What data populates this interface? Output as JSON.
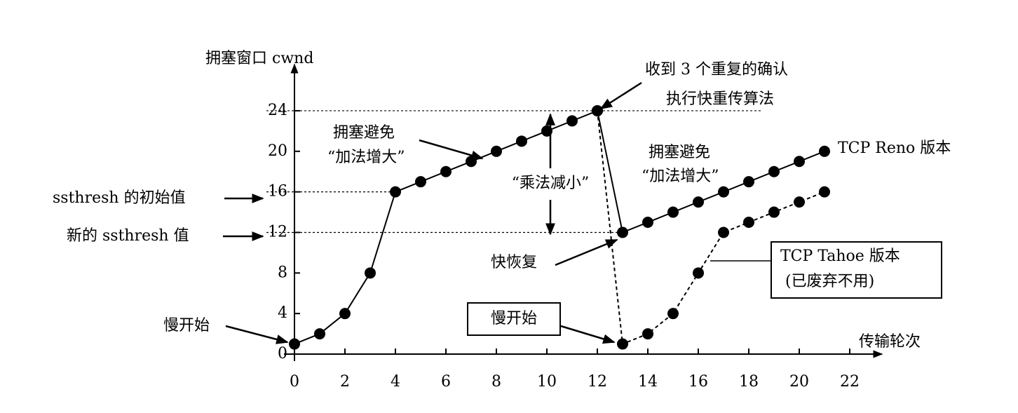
{
  "chart_data": {
    "type": "line",
    "y_label": "拥塞窗口 cwnd",
    "x_label": "传输轮次",
    "xlim": [
      0,
      23
    ],
    "xticks": [
      0,
      2,
      4,
      6,
      8,
      10,
      12,
      14,
      16,
      18,
      20,
      22
    ],
    "ylim": [
      0,
      28
    ],
    "yticks": [
      0,
      4,
      8,
      12,
      16,
      20,
      24
    ],
    "grid": false,
    "series": [
      {
        "name": "TCP Reno 版本",
        "color": "#000000",
        "dashed": false,
        "x": [
          0,
          1,
          2,
          3,
          4,
          5,
          6,
          7,
          8,
          9,
          10,
          11,
          12,
          13,
          14,
          15,
          16,
          17,
          18,
          19,
          20,
          21
        ],
        "values": [
          1,
          2,
          4,
          8,
          16,
          17,
          18,
          19,
          20,
          21,
          22,
          23,
          24,
          12,
          13,
          14,
          15,
          16,
          17,
          18,
          19,
          20
        ]
      },
      {
        "name": "TCP Tahoe 版本",
        "color": "#000000",
        "dashed": true,
        "x": [
          12,
          13,
          14,
          15,
          16,
          17,
          18,
          19,
          20,
          21
        ],
        "values": [
          24,
          1,
          2,
          4,
          8,
          12,
          13,
          14,
          15,
          16
        ]
      }
    ],
    "annotations": {
      "triple_ack": [
        "收到 3 个重复的确认",
        "执行快重传算法"
      ],
      "avoid_1": [
        "拥塞避免",
        "“加法增大”"
      ],
      "avoid_2": [
        "拥塞避免",
        "“加法增大”"
      ],
      "multiplicative": "“乘法减小”",
      "ssthresh_initial": "ssthresh 的初始值",
      "ssthresh_new": "新的 ssthresh 值",
      "slow_start_1": "慢开始",
      "slow_start_2": "慢开始",
      "fast_recovery": "快恢复",
      "tahoe_note": "(已废弃不用)"
    }
  }
}
